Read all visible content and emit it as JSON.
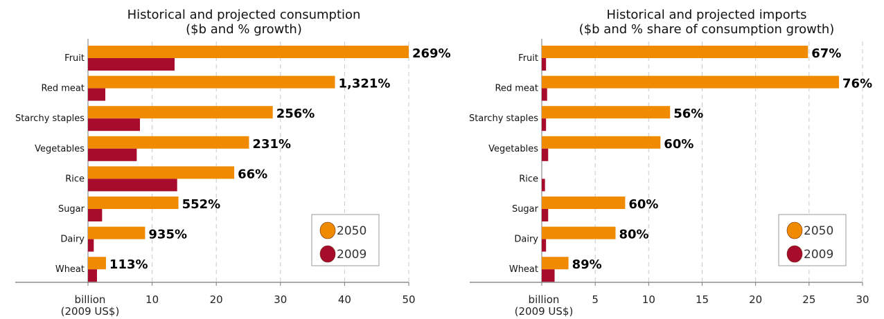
{
  "colors": {
    "2050": "#F08A00",
    "2009": "#A80C2C",
    "grid": "#c8c8c8",
    "axis": "#777777"
  },
  "chart_data": [
    {
      "type": "bar",
      "orientation": "horizontal",
      "title": "Historical and projected consumption",
      "subtitle": "($b and % growth)",
      "xlabel": "billion",
      "xlabel2": "(2009 US$)",
      "xlim": [
        0,
        50
      ],
      "xticks": [
        10,
        20,
        30,
        40,
        50
      ],
      "grid": true,
      "legend_position": "bottom-right",
      "categories": [
        "Fruit",
        "Red meat",
        "Starchy staples",
        "Vegetables",
        "Rice",
        "Sugar",
        "Dairy",
        "Wheat"
      ],
      "series": [
        {
          "name": "2050",
          "values": [
            50,
            38.5,
            28.8,
            25.1,
            22.8,
            14.1,
            8.9,
            2.8
          ]
        },
        {
          "name": "2009",
          "values": [
            13.5,
            2.7,
            8.1,
            7.6,
            13.9,
            2.2,
            0.9,
            1.4
          ]
        }
      ],
      "data_labels": [
        "269%",
        "1,321%",
        "256%",
        "231%",
        "66%",
        "552%",
        "935%",
        "113%"
      ]
    },
    {
      "type": "bar",
      "orientation": "horizontal",
      "title": "Historical and projected imports",
      "subtitle": "($b and % share of consumption growth)",
      "xlabel": "billion",
      "xlabel2": "(2009 US$)",
      "xlim": [
        0,
        30
      ],
      "xticks": [
        5,
        10,
        15,
        20,
        25,
        30
      ],
      "grid": true,
      "legend_position": "bottom-right",
      "categories": [
        "Fruit",
        "Red meat",
        "Starchy staples",
        "Vegetables",
        "Rice",
        "Sugar",
        "Dairy",
        "Wheat"
      ],
      "series": [
        {
          "name": "2050",
          "values": [
            24.9,
            27.8,
            12.0,
            11.1,
            0,
            7.8,
            6.9,
            2.5
          ]
        },
        {
          "name": "2009",
          "values": [
            0.4,
            0.5,
            0.4,
            0.6,
            0.3,
            0.6,
            0.4,
            1.2
          ]
        }
      ],
      "data_labels": [
        "67%",
        "76%",
        "56%",
        "60%",
        "",
        "60%",
        "80%",
        "89%"
      ]
    }
  ]
}
